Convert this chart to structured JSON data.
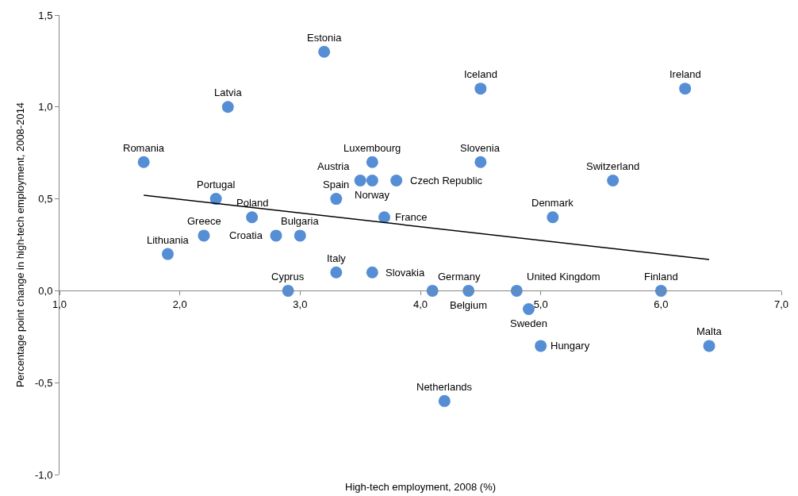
{
  "chart_data": {
    "type": "scatter",
    "xlabel": "High-tech employment, 2008 (%)",
    "ylabel": "Percentage point change in high-tech employment, 2008-2014",
    "xlim": [
      1.0,
      7.0
    ],
    "xticks": [
      {
        "value": 1.0,
        "label": "1,0"
      },
      {
        "value": 2.0,
        "label": "2,0"
      },
      {
        "value": 3.0,
        "label": "3,0"
      },
      {
        "value": 4.0,
        "label": "4,0"
      },
      {
        "value": 5.0,
        "label": "5,0"
      },
      {
        "value": 6.0,
        "label": "6,0"
      },
      {
        "value": 7.0,
        "label": "7,0"
      }
    ],
    "ylim": [
      -1.0,
      1.5
    ],
    "yticks": [
      {
        "value": -1.0,
        "label": "-1,0"
      },
      {
        "value": -0.5,
        "label": "-0,5"
      },
      {
        "value": 0.0,
        "label": "0,0"
      },
      {
        "value": 0.5,
        "label": "0,5"
      },
      {
        "value": 1.0,
        "label": "1,0"
      },
      {
        "value": 1.5,
        "label": "1,5"
      }
    ],
    "grid": false,
    "series": [
      {
        "color": "#558ed5",
        "marker": "circle",
        "x": [
          1.7,
          2.4,
          3.2,
          2.3,
          2.6,
          2.2,
          1.9,
          2.8,
          3.0,
          2.9,
          3.3,
          3.6,
          3.3,
          3.5,
          3.6,
          3.6,
          3.8,
          3.7,
          4.5,
          4.5,
          4.1,
          4.4,
          4.8,
          4.9,
          5.0,
          4.2,
          5.1,
          5.6,
          6.0,
          6.2,
          6.4
        ],
        "values": [
          0.7,
          1.0,
          1.3,
          0.5,
          0.4,
          0.3,
          0.2,
          0.3,
          0.3,
          0.0,
          0.1,
          0.1,
          0.5,
          0.6,
          0.6,
          0.7,
          0.6,
          0.4,
          1.1,
          0.7,
          0.0,
          0.0,
          0.0,
          -0.1,
          -0.3,
          -0.6,
          0.4,
          0.6,
          0.0,
          1.1,
          -0.3
        ]
      },
      {
        "type": "line",
        "color": "#000000",
        "marker": "none",
        "line_style": "solid",
        "x": [
          1.7,
          6.4
        ],
        "values": [
          0.52,
          0.17
        ]
      }
    ],
    "annotations": [
      {
        "text": "Romania",
        "x": 1.7,
        "y": 0.7
      },
      {
        "text": "Latvia",
        "x": 2.4,
        "y": 1.0
      },
      {
        "text": "Estonia",
        "x": 3.2,
        "y": 1.3
      },
      {
        "text": "Portugal",
        "x": 2.3,
        "y": 0.5
      },
      {
        "text": "Poland",
        "x": 2.6,
        "y": 0.4
      },
      {
        "text": "Greece",
        "x": 2.2,
        "y": 0.3
      },
      {
        "text": "Lithuania",
        "x": 1.9,
        "y": 0.2
      },
      {
        "text": "Croatia",
        "x": 2.8,
        "y": 0.3
      },
      {
        "text": "Bulgaria",
        "x": 3.0,
        "y": 0.3
      },
      {
        "text": "Cyprus",
        "x": 2.9,
        "y": 0.0
      },
      {
        "text": "Italy",
        "x": 3.3,
        "y": 0.1
      },
      {
        "text": "Slovakia",
        "x": 3.6,
        "y": 0.1
      },
      {
        "text": "Spain",
        "x": 3.3,
        "y": 0.5
      },
      {
        "text": "Austria",
        "x": 3.5,
        "y": 0.6
      },
      {
        "text": "Norway",
        "x": 3.6,
        "y": 0.6
      },
      {
        "text": "Luxembourg",
        "x": 3.6,
        "y": 0.7
      },
      {
        "text": "Czech Republic",
        "x": 3.8,
        "y": 0.6
      },
      {
        "text": "France",
        "x": 3.7,
        "y": 0.4
      },
      {
        "text": "Iceland",
        "x": 4.5,
        "y": 1.1
      },
      {
        "text": "Slovenia",
        "x": 4.5,
        "y": 0.7
      },
      {
        "text": "Germany",
        "x": 4.1,
        "y": 0.0
      },
      {
        "text": "Belgium",
        "x": 4.4,
        "y": 0.0
      },
      {
        "text": "United Kingdom",
        "x": 4.8,
        "y": 0.0
      },
      {
        "text": "Sweden",
        "x": 4.9,
        "y": -0.1
      },
      {
        "text": "Hungary",
        "x": 5.0,
        "y": -0.3
      },
      {
        "text": "Netherlands",
        "x": 4.2,
        "y": -0.6
      },
      {
        "text": "Denmark",
        "x": 5.1,
        "y": 0.4
      },
      {
        "text": "Switzerland",
        "x": 5.6,
        "y": 0.6
      },
      {
        "text": "Finland",
        "x": 6.0,
        "y": 0.0
      },
      {
        "text": "Ireland",
        "x": 6.2,
        "y": 1.1
      },
      {
        "text": "Malta",
        "x": 6.4,
        "y": -0.3
      }
    ]
  }
}
